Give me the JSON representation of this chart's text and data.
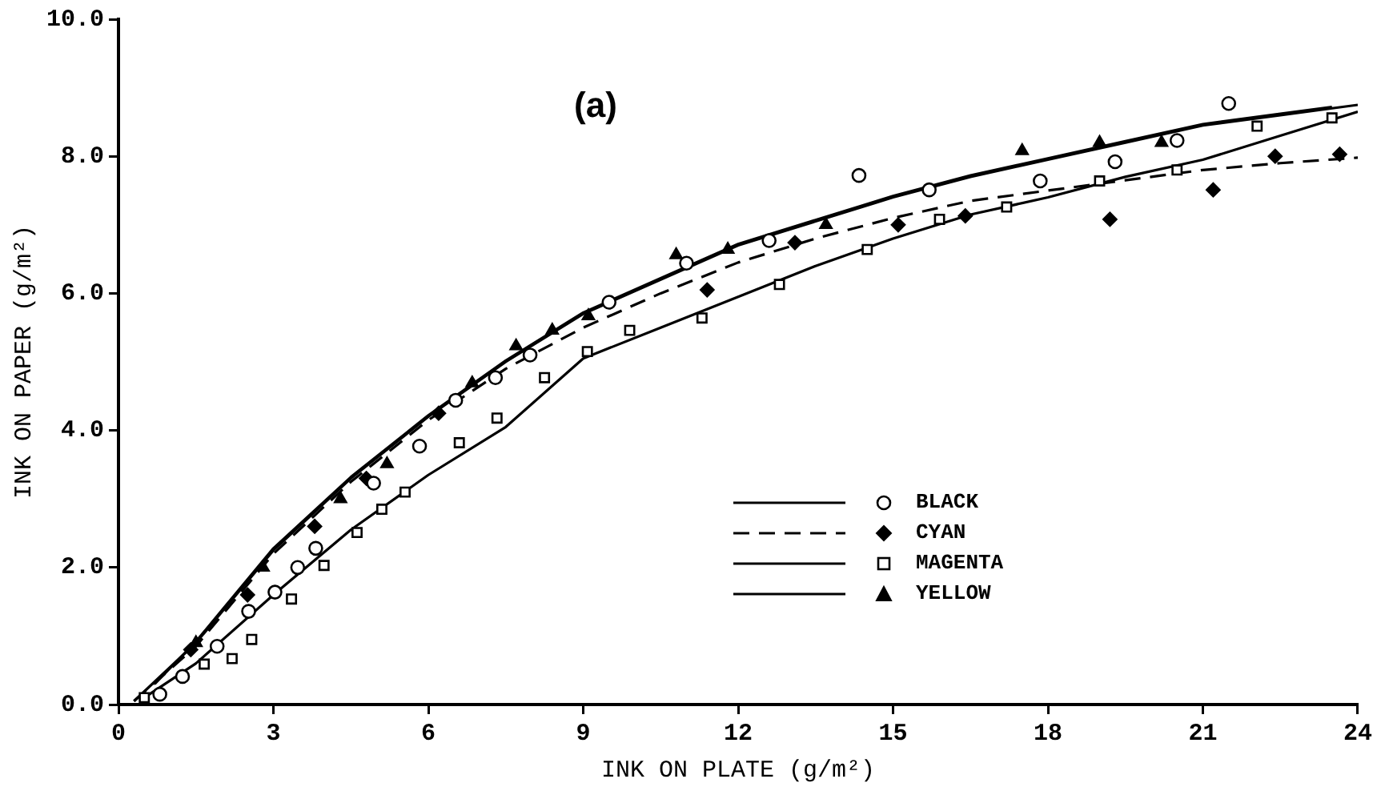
{
  "chart_data": {
    "type": "scatter",
    "xlabel": "INK ON PLATE (g/m²)",
    "ylabel": "INK ON PAPER (g/m²)",
    "annotations": [
      "(a)"
    ],
    "xlim": [
      0,
      24
    ],
    "xticks": [
      0,
      3,
      6,
      9,
      12,
      15,
      18,
      21,
      24
    ],
    "ylim": [
      0,
      10
    ],
    "yticks": [
      {
        "value": 0,
        "label": "0.0"
      },
      {
        "value": 2,
        "label": "2.0"
      },
      {
        "value": 4,
        "label": "4.0"
      },
      {
        "value": 6,
        "label": "6.0"
      },
      {
        "value": 8,
        "label": "8.0"
      },
      {
        "value": 10,
        "label": "10.0"
      }
    ],
    "grid": false,
    "legend": "bottom right",
    "series": [
      {
        "name": "BLACK",
        "type": "scatter",
        "marker": "circle",
        "color": "#000000",
        "x": [
          0.8,
          1.24,
          1.91,
          2.52,
          3.03,
          3.47,
          3.82,
          4.94,
          5.83,
          6.53,
          7.3,
          7.97,
          9.5,
          11.0,
          12.6,
          14.34,
          15.7,
          17.85,
          19.3,
          20.5,
          21.5
        ],
        "values": [
          0.15,
          0.41,
          0.85,
          1.36,
          1.64,
          2.0,
          2.28,
          3.23,
          3.77,
          4.44,
          4.77,
          5.1,
          5.87,
          6.44,
          6.77,
          7.72,
          7.51,
          7.64,
          7.92,
          8.23,
          8.77
        ]
      },
      {
        "name": "CYAN",
        "type": "scatter",
        "marker": "diamond",
        "color": "#000000",
        "x": [
          1.4,
          2.5,
          3.8,
          4.8,
          6.2,
          11.4,
          13.1,
          15.1,
          16.4,
          19.2,
          21.2,
          22.4,
          23.65
        ],
        "values": [
          0.8,
          1.6,
          2.6,
          3.3,
          4.25,
          6.05,
          6.74,
          7.0,
          7.13,
          7.08,
          7.51,
          8.0,
          8.03
        ]
      },
      {
        "name": "MAGENTA",
        "type": "scatter",
        "marker": "square",
        "color": "#000000",
        "x": [
          0.5,
          1.66,
          2.2,
          2.58,
          3.35,
          3.98,
          4.62,
          5.1,
          5.55,
          6.6,
          7.33,
          8.25,
          9.08,
          9.9,
          11.3,
          12.8,
          14.5,
          15.9,
          17.2,
          19.0,
          20.5,
          22.05,
          23.5
        ],
        "values": [
          0.1,
          0.59,
          0.67,
          0.95,
          1.54,
          2.03,
          2.51,
          2.85,
          3.1,
          3.82,
          4.18,
          4.77,
          5.15,
          5.46,
          5.64,
          6.13,
          6.64,
          7.08,
          7.26,
          7.64,
          7.8,
          8.44,
          8.56
        ]
      },
      {
        "name": "YELLOW",
        "type": "scatter",
        "marker": "triangle",
        "color": "#000000",
        "x": [
          1.5,
          2.8,
          4.3,
          5.2,
          6.85,
          7.7,
          8.4,
          9.1,
          10.8,
          11.8,
          13.7,
          17.5,
          19.0,
          20.2
        ],
        "values": [
          0.9,
          2.0,
          3.0,
          3.51,
          4.69,
          5.23,
          5.46,
          5.67,
          6.56,
          6.64,
          7.0,
          8.08,
          8.2,
          8.2
        ]
      },
      {
        "type": "line",
        "line_style": "solid",
        "color": "#000000",
        "x": [
          0.3,
          1.5,
          3,
          4.5,
          6,
          7.5,
          9,
          10.5,
          12,
          13.5,
          15,
          16.5,
          18,
          19.5,
          21,
          22.5,
          24
        ],
        "values": [
          0.05,
          0.9,
          2.25,
          3.3,
          4.2,
          5.0,
          5.7,
          6.2,
          6.7,
          7.05,
          7.4,
          7.7,
          7.95,
          8.2,
          8.45,
          8.6,
          8.75
        ]
      },
      {
        "type": "line",
        "line_style": "dashed",
        "color": "#000000",
        "x": [
          0.3,
          1.5,
          3,
          4.5,
          6,
          7.5,
          9,
          10.5,
          12,
          13.5,
          15,
          16.5,
          18,
          19.5,
          21,
          22.5,
          24
        ],
        "values": [
          0.05,
          0.85,
          2.2,
          3.25,
          4.15,
          4.9,
          5.5,
          6.0,
          6.45,
          6.8,
          7.1,
          7.35,
          7.5,
          7.65,
          7.8,
          7.9,
          7.98
        ]
      },
      {
        "type": "line",
        "line_style": "solid",
        "color": "#000000",
        "x": [
          0.5,
          1.5,
          3,
          4.5,
          6,
          7.5,
          9,
          10.5,
          12,
          13.5,
          15,
          16.5,
          18,
          19.5,
          21,
          22.5,
          24
        ],
        "values": [
          0.1,
          0.6,
          1.6,
          2.55,
          3.35,
          4.05,
          5.05,
          5.5,
          5.95,
          6.4,
          6.8,
          7.15,
          7.4,
          7.7,
          7.95,
          8.3,
          8.65
        ]
      },
      {
        "type": "line",
        "line_style": "solid",
        "color": "#000000",
        "x": [
          0.7,
          1.5,
          3,
          4.5,
          6,
          7.5,
          9,
          10.5,
          12,
          13.5,
          15,
          16.5,
          18,
          19.5,
          21,
          22.5,
          23.5
        ],
        "values": [
          0.3,
          0.92,
          2.28,
          3.32,
          4.22,
          5.02,
          5.72,
          6.22,
          6.72,
          7.07,
          7.42,
          7.72,
          7.97,
          8.22,
          8.47,
          8.62,
          8.72
        ]
      }
    ]
  }
}
